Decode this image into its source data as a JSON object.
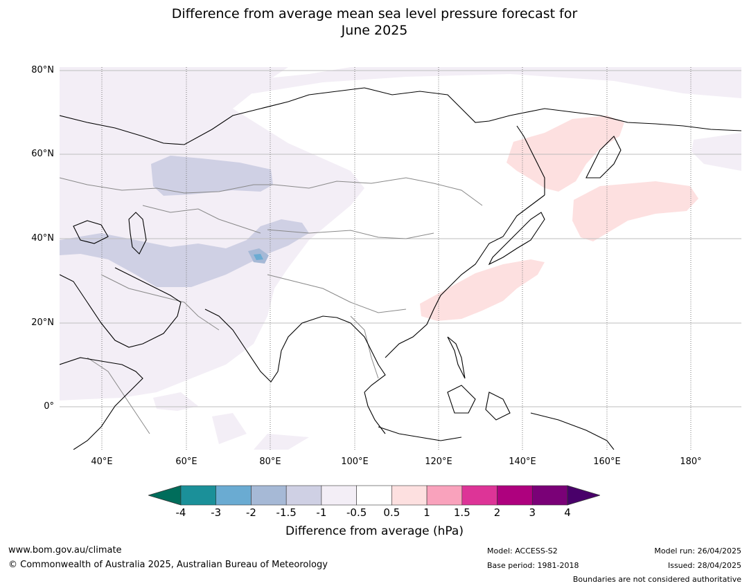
{
  "title_line1": "Difference from average mean sea level pressure forecast for",
  "title_line2": "June 2025",
  "lat_labels": [
    "80°N",
    "60°N",
    "40°N",
    "20°N",
    "0°"
  ],
  "lon_labels": [
    "40°E",
    "60°E",
    "80°E",
    "100°E",
    "120°E",
    "140°E",
    "160°E",
    "180°"
  ],
  "colorbar": {
    "ticks": [
      "-4",
      "-3",
      "-2",
      "-1.5",
      "-1",
      "-0.5",
      "0.5",
      "1",
      "1.5",
      "2",
      "3",
      "4"
    ],
    "colors": [
      "#1b9099",
      "#6aabd2",
      "#a6b9d6",
      "#cfd0e4",
      "#f3eef6",
      "#ffffff",
      "#fde0e0",
      "#f9a2bc",
      "#dd3497",
      "#ae017e",
      "#7a0177"
    ],
    "under_color": "#006d5b",
    "over_color": "#49006a",
    "label": "Difference from average (hPa)"
  },
  "footer": {
    "website": "www.bom.gov.au/climate",
    "copyright": "© Commonwealth of Australia 2025, Australian Bureau of Meteorology",
    "model": "Model: ACCESS-S2",
    "base_period": "Base period: 1981-2018",
    "model_run": "Model run: 26/04/2025",
    "issued": "Issued: 28/04/2025",
    "boundaries_note": "Boundaries are not considered authoritative"
  }
}
